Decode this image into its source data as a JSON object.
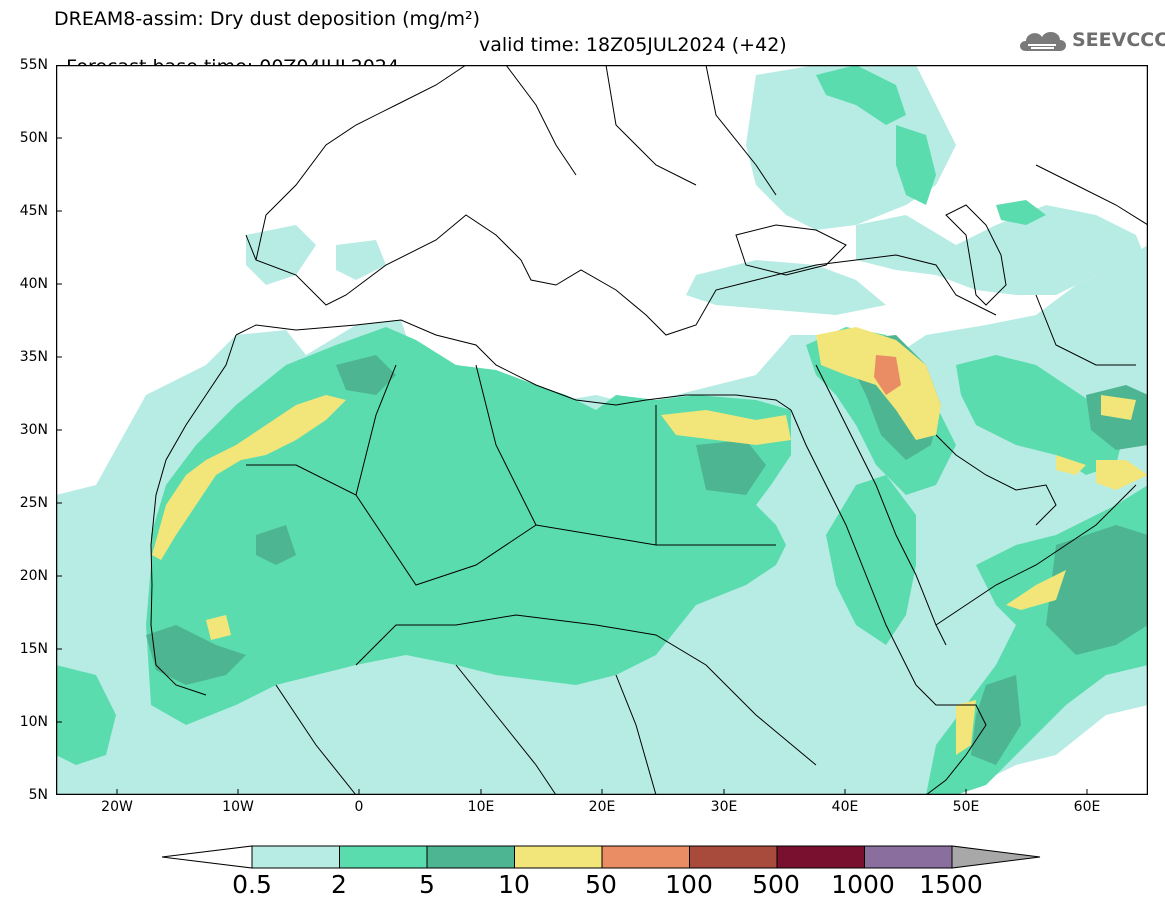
{
  "title": {
    "line1": "DREAM8-assim: Dry dust deposition (mg/m²)",
    "base_time": "Forecast base time: 00Z04JUL2024",
    "valid_time": "valid time: 18Z05JUL2024 (+42)"
  },
  "logo": {
    "text": "SEEVCCC",
    "icon": "cloud-icon"
  },
  "map": {
    "region": "North Africa, Europe and Middle East",
    "lat_labels": [
      "55N",
      "50N",
      "45N",
      "40N",
      "35N",
      "30N",
      "25N",
      "20N",
      "15N",
      "10N",
      "5N"
    ],
    "lon_labels": [
      "20W",
      "10W",
      "0",
      "10E",
      "20E",
      "30E",
      "40E",
      "50E",
      "60E"
    ],
    "lat_range": [
      5,
      55
    ],
    "lon_range": [
      -25,
      65
    ]
  },
  "colorbar": {
    "thresholds": [
      "0.5",
      "2",
      "5",
      "10",
      "50",
      "100",
      "500",
      "1000",
      "1500"
    ],
    "colors": [
      "#b7ece4",
      "#5adcae",
      "#4db592",
      "#f2e67a",
      "#ea8c64",
      "#a84a3c",
      "#7a1030",
      "#8a6e9e",
      "#a8a8a8"
    ]
  }
}
